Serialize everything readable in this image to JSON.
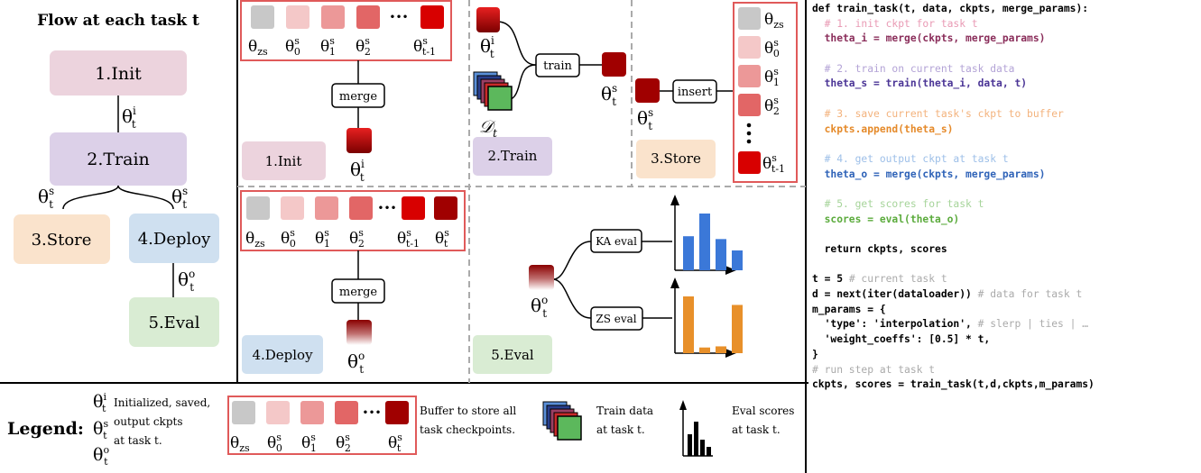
{
  "flow": {
    "title": "Flow at each task t",
    "init": "1.Init",
    "train": "2.Train",
    "store": "3.Store",
    "deploy": "4.Deploy",
    "eval": "5.Eval",
    "colors": {
      "init": "#ecd3dd",
      "train": "#dcd0e8",
      "store": "#fae3cc",
      "deploy": "#cfe0f0",
      "eval": "#d9ecd3"
    }
  },
  "math": {
    "theta": "θ",
    "sub_t": "t",
    "sup_i": "i",
    "sup_s": "s",
    "sup_o": "o",
    "sub_zs": "zs",
    "sub_0": "0",
    "sub_1": "1",
    "sub_2": "2",
    "sub_tm1": "t-1",
    "dots": "•••",
    "data_symbol": "𝒟",
    "vdots": "⋮"
  },
  "panels": {
    "init": {
      "merge": "merge",
      "label": "1.Init"
    },
    "train": {
      "train": "train",
      "label": "2.Train"
    },
    "store": {
      "insert": "insert",
      "label": "3.Store"
    },
    "deploy": {
      "merge": "merge",
      "label": "4.Deploy"
    },
    "eval": {
      "ka": "KA eval",
      "zs": "ZS eval",
      "label": "5.Eval"
    }
  },
  "buffer_colors": [
    "#c8c8c8",
    "#f4c8c8",
    "#ec9898",
    "#e26666",
    "#d80000",
    "#a00000"
  ],
  "legend": {
    "title": "Legend:",
    "ckpt_line1": "Initialized, saved,",
    "ckpt_line2": "output ckpts",
    "ckpt_line3": "at task t.",
    "buffer_line1": "Buffer to store all",
    "buffer_line2": "task checkpoints.",
    "data_line1": "Train data",
    "data_line2": "at task t.",
    "eval_line1": "Eval scores",
    "eval_line2": "at task t."
  },
  "chart_data": [
    {
      "type": "bar",
      "title": "",
      "values": [
        0.6,
        1.0,
        0.55,
        0.35
      ],
      "color": "#3b78d8"
    },
    {
      "type": "bar",
      "title": "",
      "values": [
        1.0,
        0.1,
        0.12,
        0.85
      ],
      "color": "#e8902a"
    }
  ],
  "code": [
    [
      {
        "t": "def train_task(t, data, ckpts, merge_params):",
        "c": "#000000"
      }
    ],
    [
      {
        "t": "  # 1. init ckpt for task t",
        "c": "#e99ab4",
        "cm": true
      }
    ],
    [
      {
        "t": "  theta_i = merge(ckpts, merge_params)",
        "c": "#8a2d5a"
      }
    ],
    [
      {
        "t": "",
        "c": "#000000"
      }
    ],
    [
      {
        "t": "  # 2. train on current task data",
        "c": "#b3a3d6",
        "cm": true
      }
    ],
    [
      {
        "t": "  theta_s = train(theta_i, data, t)",
        "c": "#4b3596"
      }
    ],
    [
      {
        "t": "",
        "c": "#000000"
      }
    ],
    [
      {
        "t": "  # 3. save current task's ckpt to buffer",
        "c": "#f3b27c",
        "cm": true
      }
    ],
    [
      {
        "t": "  ckpts.append(theta_s)",
        "c": "#e58a2a"
      }
    ],
    [
      {
        "t": "",
        "c": "#000000"
      }
    ],
    [
      {
        "t": "  # 4. get output ckpt at task t",
        "c": "#9dbfe8",
        "cm": true
      }
    ],
    [
      {
        "t": "  theta_o = merge(ckpts, merge_params)",
        "c": "#2f63b8"
      }
    ],
    [
      {
        "t": "",
        "c": "#000000"
      }
    ],
    [
      {
        "t": "  # 5. get scores for task t",
        "c": "#a6d49a",
        "cm": true
      }
    ],
    [
      {
        "t": "  scores = eval(theta_o)",
        "c": "#5bab3c"
      }
    ],
    [
      {
        "t": "",
        "c": "#000000"
      }
    ],
    [
      {
        "t": "  return ckpts, scores",
        "c": "#000000"
      }
    ],
    [
      {
        "t": "",
        "c": "#000000"
      }
    ],
    [
      {
        "t": "t = 5",
        "c": "#000000"
      },
      {
        "t": " # current task t",
        "c": "#aaaaaa",
        "cm": true
      }
    ],
    [
      {
        "t": "d = next(iter(dataloader))",
        "c": "#000000"
      },
      {
        "t": " # data for task t",
        "c": "#aaaaaa",
        "cm": true
      }
    ],
    [
      {
        "t": "m_params = {",
        "c": "#000000"
      }
    ],
    [
      {
        "t": "  'type': 'interpolation',",
        "c": "#000000"
      },
      {
        "t": " # slerp | ties | …",
        "c": "#aaaaaa",
        "cm": true
      }
    ],
    [
      {
        "t": "  'weight_coeffs': [0.5] * t,",
        "c": "#000000"
      }
    ],
    [
      {
        "t": "}",
        "c": "#000000"
      }
    ],
    [
      {
        "t": "# run step at task t",
        "c": "#aaaaaa",
        "cm": true
      }
    ],
    [
      {
        "t": "ckpts, scores = train_task(t,d,ckpts,m_params)",
        "c": "#000000"
      }
    ]
  ]
}
